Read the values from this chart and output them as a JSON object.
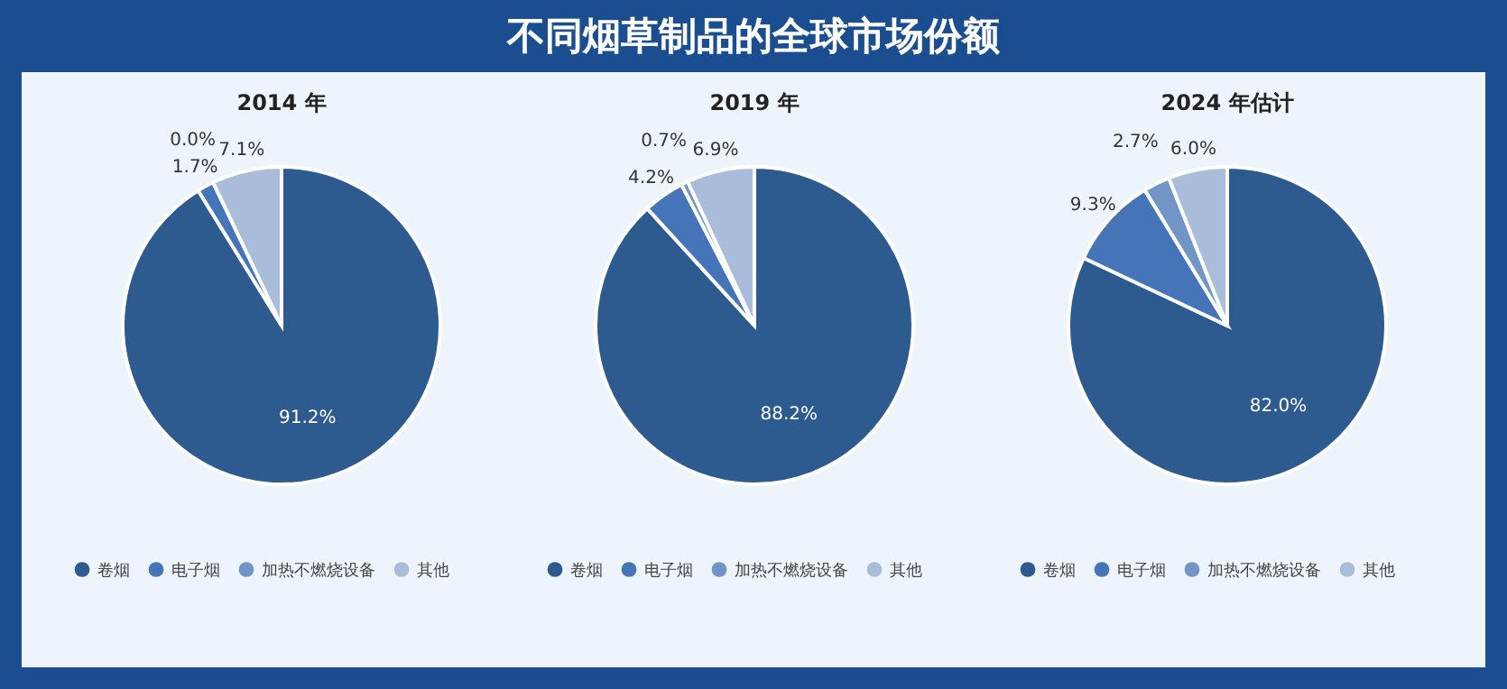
{
  "chart_data": [
    {
      "type": "pie",
      "title": "2014 年",
      "annotations": [
        "不同烟草制品的全球市场份额"
      ],
      "categories": [
        "卷烟",
        "电子烟",
        "加热不燃烧设备",
        "其他"
      ],
      "values": [
        91.2,
        1.7,
        0.0,
        7.1
      ],
      "value_labels": [
        "91.2%",
        "1.7%",
        "0.0%",
        "7.1%"
      ],
      "colors": [
        "#2e5b8f",
        "#4575b8",
        "#7095c6",
        "#a9bddb"
      ],
      "legend": "bottom"
    },
    {
      "type": "pie",
      "title": "2019 年",
      "categories": [
        "卷烟",
        "电子烟",
        "加热不燃烧设备",
        "其他"
      ],
      "values": [
        88.2,
        4.2,
        0.7,
        6.9
      ],
      "value_labels": [
        "88.2%",
        "4.2%",
        "0.7%",
        "6.9%"
      ],
      "colors": [
        "#2e5b8f",
        "#4575b8",
        "#7095c6",
        "#a9bddb"
      ],
      "legend": "bottom"
    },
    {
      "type": "pie",
      "title": "2024 年估计",
      "categories": [
        "卷烟",
        "电子烟",
        "加热不燃烧设备",
        "其他"
      ],
      "values": [
        82.0,
        9.3,
        2.7,
        6.0
      ],
      "value_labels": [
        "82.0%",
        "9.3%",
        "2.7%",
        "6.0%"
      ],
      "colors": [
        "#2e5b8f",
        "#4575b8",
        "#7095c6",
        "#a9bddb"
      ],
      "legend": "bottom"
    }
  ]
}
